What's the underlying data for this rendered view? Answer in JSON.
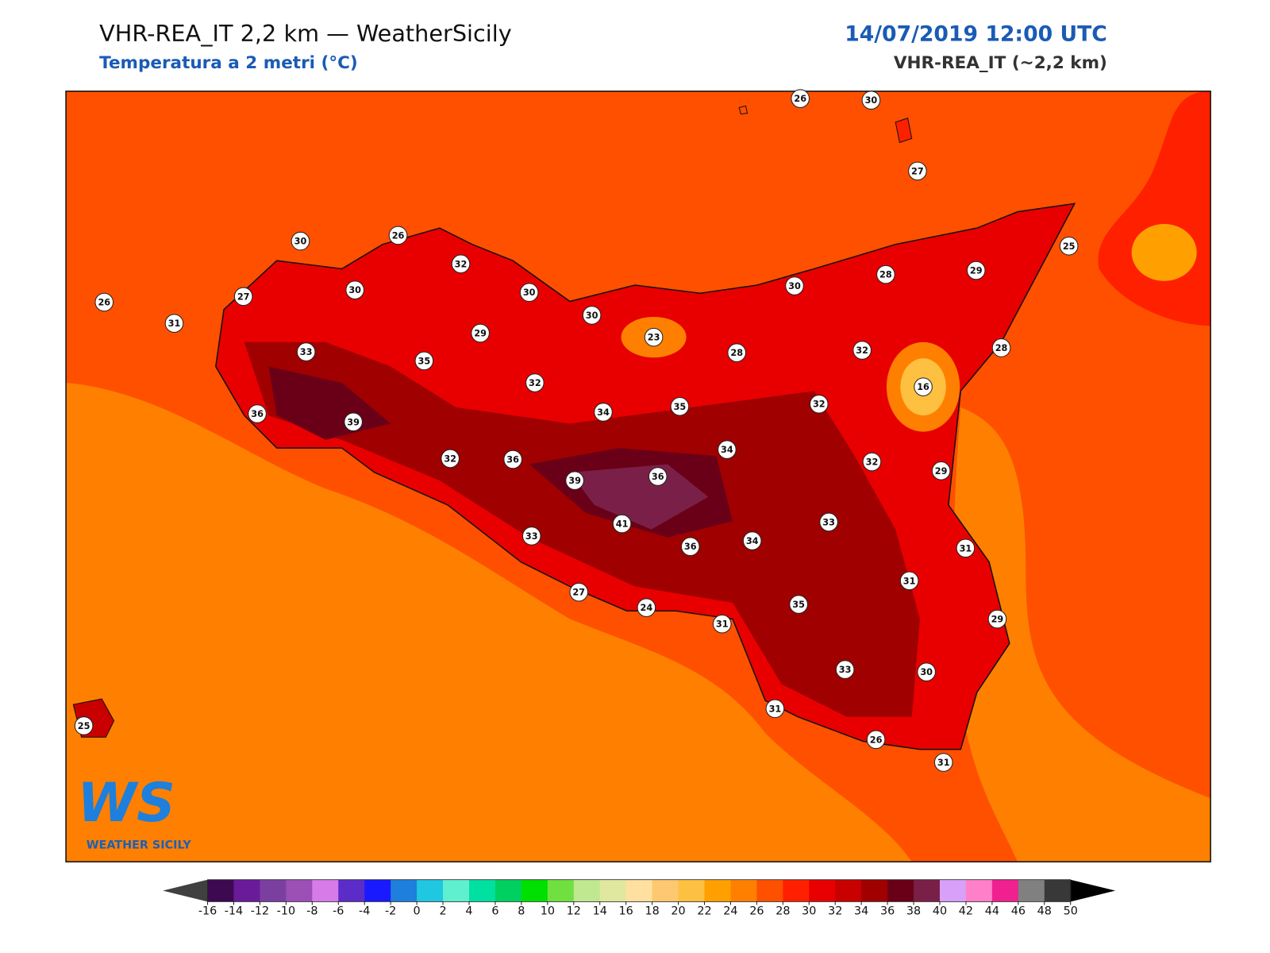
{
  "header": {
    "title": "VHR-REA_IT 2,2 km — WeatherSicily",
    "subtitle": "Temperatura a 2 metri (°C)",
    "date": "14/07/2019 12:00 UTC",
    "model": "VHR-REA_IT (~2,2 km)"
  },
  "logo": {
    "mark": "WS",
    "name": "WEATHER SICILY"
  },
  "stations": [
    26,
    30,
    27,
    30,
    26,
    32,
    25,
    26,
    27,
    30,
    30,
    30,
    28,
    29,
    31,
    30,
    29,
    23,
    28,
    32,
    28,
    33,
    35,
    16,
    32,
    36,
    39,
    34,
    35,
    32,
    32,
    36,
    34,
    32,
    29,
    39,
    36,
    41,
    33,
    36,
    34,
    33,
    31,
    31,
    27,
    24,
    35,
    31,
    29,
    33,
    30,
    31,
    25,
    26,
    31
  ],
  "colorbar": {
    "ticks": [
      -16,
      -14,
      -12,
      -10,
      -8,
      -6,
      -4,
      -2,
      0,
      2,
      4,
      6,
      8,
      10,
      12,
      14,
      16,
      18,
      20,
      22,
      24,
      26,
      28,
      30,
      32,
      34,
      36,
      38,
      40,
      42,
      44,
      46,
      48,
      50
    ],
    "colors": [
      "#3d0a52",
      "#6a1b9a",
      "#7b3fa0",
      "#9c4fb5",
      "#d77be8",
      "#5b2cc8",
      "#1a1aff",
      "#1e7fdc",
      "#1fc7e0",
      "#5ff0d0",
      "#00e0a0",
      "#00d060",
      "#00e000",
      "#70e040",
      "#c0e890",
      "#e0e8a0",
      "#ffe0a0",
      "#fdc870",
      "#fdc040",
      "#ffa000",
      "#ff8000",
      "#ff5000",
      "#ff2000",
      "#e80000",
      "#c80000",
      "#a00000",
      "#6a0018",
      "#7a2048",
      "#d8a0f8",
      "#ff80c8",
      "#f02090",
      "#808080",
      "#383838"
    ],
    "under": "#404040",
    "over": "#000000"
  }
}
